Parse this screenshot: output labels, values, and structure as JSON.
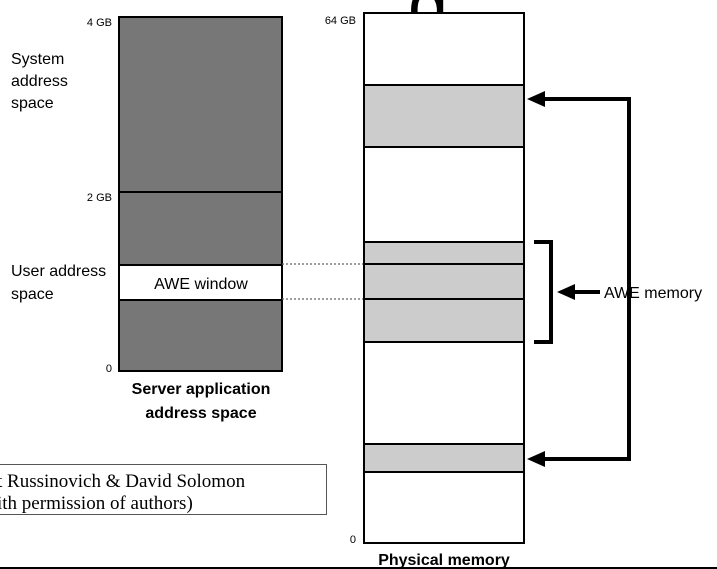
{
  "title_fragment": "g",
  "left_column": {
    "tick_top": "4 GB",
    "tick_mid": "2 GB",
    "tick_bottom": "0",
    "system_label": [
      "System",
      "address",
      "space"
    ],
    "user_label": [
      "User address",
      "space"
    ],
    "window_label": "AWE window",
    "caption": [
      "Server application",
      "address space"
    ]
  },
  "right_column": {
    "tick_top": "64 GB",
    "tick_bottom": "0",
    "caption": "Physical memory"
  },
  "awe_memory_label": "AWE memory",
  "credit": {
    "line1": "t Russinovich & David Solomon",
    "line2": "ith permission of authors)"
  },
  "colors": {
    "dark_gray": "#777777",
    "light_gray": "#cccccc",
    "outline": "#000000"
  }
}
